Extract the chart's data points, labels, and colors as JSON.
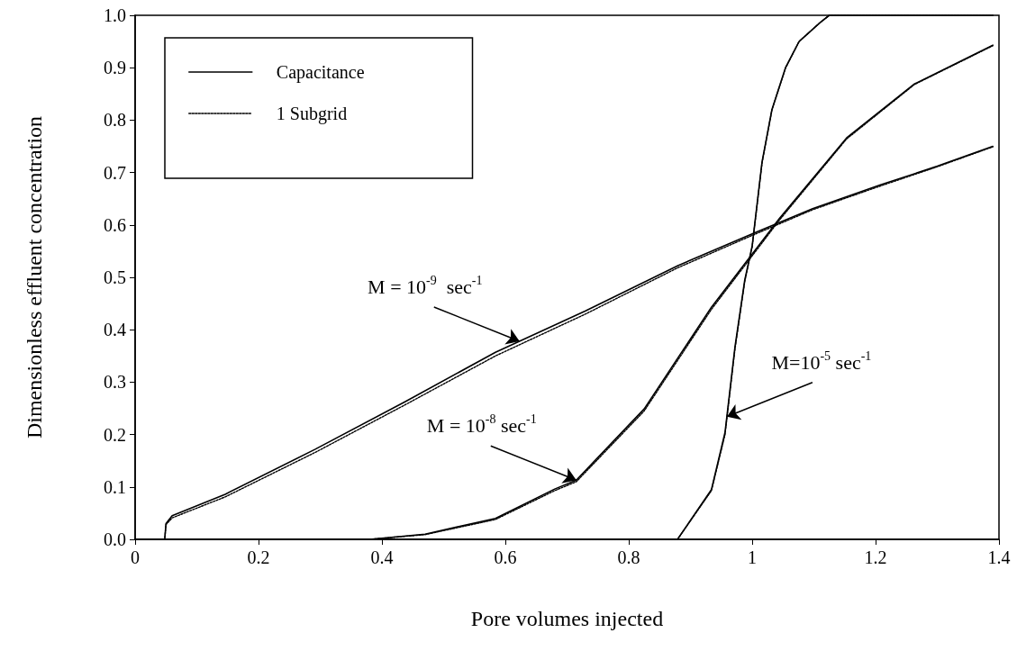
{
  "chart_data": {
    "type": "line",
    "xlabel": "Pore volumes injected",
    "ylabel": "Dimensionless effluent concentration",
    "xlim": [
      0,
      1.4
    ],
    "xticks": [
      0,
      0.2,
      0.4,
      0.6,
      0.8,
      1,
      1.2,
      1.4
    ],
    "ylim": [
      0,
      1.0
    ],
    "yticks": [
      {
        "value": 0,
        "label": "0.0"
      },
      {
        "value": 0.1,
        "label": "0.1"
      },
      {
        "value": 0.2,
        "label": "0.2"
      },
      {
        "value": 0.3,
        "label": "0.3"
      },
      {
        "value": 0.4,
        "label": "0.4"
      },
      {
        "value": 0.5,
        "label": "0.5"
      },
      {
        "value": 0.6,
        "label": "0.6"
      },
      {
        "value": 0.7,
        "label": "0.7"
      },
      {
        "value": 0.8,
        "label": "0.8"
      },
      {
        "value": 0.9,
        "label": "0.9"
      },
      {
        "value": 1.0,
        "label": "1.0"
      }
    ],
    "grid": false,
    "legend": "top left",
    "marker": "none",
    "series": [
      {
        "name": "Capacitance",
        "color": "#000000",
        "line_style": "solid",
        "x": [
          0,
          0.048,
          0.05,
          0.06,
          0.146,
          0.292,
          0.438,
          0.584,
          0.73,
          0.879,
          1.0,
          1.098,
          1.207,
          1.3,
          1.39
        ],
        "values": [
          0,
          0,
          0.03,
          0.045,
          0.086,
          0.172,
          0.263,
          0.357,
          0.436,
          0.522,
          0.583,
          0.631,
          0.676,
          0.712,
          0.75
        ]
      },
      {
        "name": "1 Subgrid",
        "color": "#000000",
        "line_style": "dotted",
        "x": [
          0,
          0.048,
          0.05,
          0.06,
          0.146,
          0.292,
          0.438,
          0.584,
          0.73,
          0.879,
          1.0,
          1.098,
          1.207,
          1.3,
          1.39
        ],
        "values": [
          0,
          0,
          0.028,
          0.041,
          0.081,
          0.166,
          0.257,
          0.35,
          0.43,
          0.518,
          0.58,
          0.629,
          0.674,
          0.711,
          0.749
        ]
      },
      {
        "color": "#000000",
        "line_style": "solid",
        "x": [
          0,
          0.38,
          0.47,
          0.584,
          0.68,
          0.715,
          0.825,
          0.934,
          1.044,
          1.153,
          1.263,
          1.39
        ],
        "values": [
          0,
          0,
          0.01,
          0.04,
          0.096,
          0.113,
          0.249,
          0.443,
          0.612,
          0.766,
          0.869,
          0.943
        ]
      },
      {
        "color": "#000000",
        "line_style": "dotted",
        "x": [
          0,
          0.38,
          0.47,
          0.584,
          0.68,
          0.715,
          0.825,
          0.934,
          1.044,
          1.153,
          1.263,
          1.39
        ],
        "values": [
          0,
          0,
          0.009,
          0.038,
          0.093,
          0.11,
          0.245,
          0.439,
          0.609,
          0.764,
          0.868,
          0.942
        ]
      },
      {
        "color": "#000000",
        "line_style": "solid",
        "x": [
          0,
          0.879,
          0.934,
          0.956,
          0.972,
          0.988,
          1.0,
          1.016,
          1.032,
          1.054,
          1.076,
          1.11,
          1.125,
          1.39
        ],
        "values": [
          0,
          0,
          0.095,
          0.204,
          0.366,
          0.495,
          0.56,
          0.72,
          0.82,
          0.9,
          0.95,
          0.986,
          1.0,
          1.0
        ]
      },
      {
        "color": "#000000",
        "line_style": "dotted",
        "x": [
          0,
          0.879,
          0.934,
          0.956,
          0.972,
          0.988,
          1.0,
          1.016,
          1.032,
          1.054,
          1.076,
          1.11,
          1.125,
          1.39
        ],
        "values": [
          0,
          0,
          0.093,
          0.2,
          0.362,
          0.492,
          0.558,
          0.718,
          0.819,
          0.899,
          0.95,
          0.986,
          1.0,
          1.0
        ]
      }
    ],
    "annotations": [
      {
        "text": "M = 10$^{-9}$  sec$^{-1}$",
        "x": 0.623,
        "y": 0.378
      },
      {
        "text": "M = 10$^{-8}$ sec$^{-1}$",
        "x": 0.715,
        "y": 0.113
      },
      {
        "text": "M=10$^{-5}$ sec$^{-1}$",
        "x": 0.959,
        "y": 0.234
      }
    ]
  }
}
